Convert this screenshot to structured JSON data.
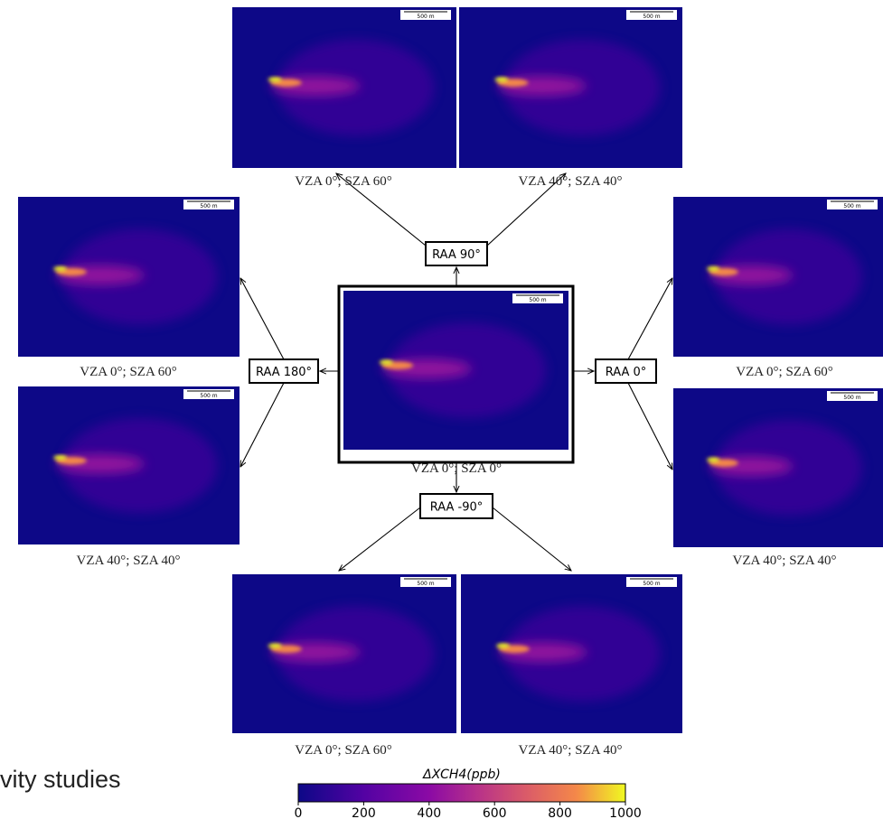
{
  "fragment_text": "vity studies",
  "scale_bar": "500 m",
  "center": {
    "caption": "VZA 0°; SZA 0°"
  },
  "groups": [
    {
      "label": "RAA 90°",
      "panels": [
        {
          "caption": "VZA 0°; SZA 60°"
        },
        {
          "caption": "VZA 40°; SZA 40°"
        }
      ]
    },
    {
      "label": "RAA 180°",
      "panels": [
        {
          "caption": "VZA 0°; SZA 60°"
        },
        {
          "caption": "VZA 40°; SZA 40°"
        }
      ]
    },
    {
      "label": "RAA 0°",
      "panels": [
        {
          "caption": "VZA 0°; SZA 60°"
        },
        {
          "caption": "VZA 40°; SZA 40°"
        }
      ]
    },
    {
      "label": "RAA -90°",
      "panels": [
        {
          "caption": "VZA 0°; SZA 60°"
        },
        {
          "caption": "VZA 40°; SZA 40°"
        }
      ]
    }
  ],
  "colorbar": {
    "label": "ΔXCH4(ppb)",
    "lim": [
      0,
      1000
    ],
    "ticks": [
      0,
      200,
      400,
      600,
      800,
      1000
    ]
  }
}
